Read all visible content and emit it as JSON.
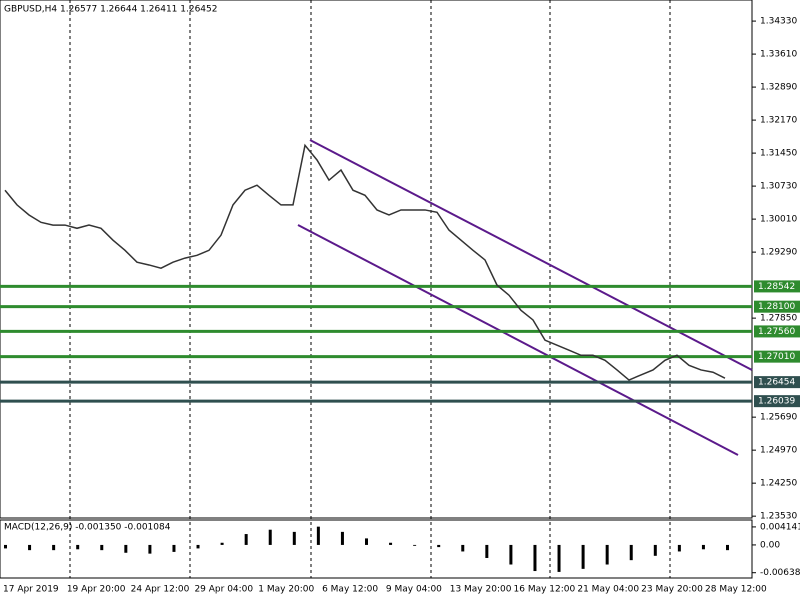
{
  "chart_data": {
    "type": "line",
    "title": "GBPUSD,H4  1.26577 1.26644 1.26411 1.26452",
    "x_labels": [
      "17 Apr 2019",
      "19 Apr 20:00",
      "24 Apr 12:00",
      "29 Apr 04:00",
      "1 May 20:00",
      "6 May 12:00",
      "9 May 04:00",
      "13 May 20:00",
      "16 May 12:00",
      "21 May 04:00",
      "23 May 20:00",
      "28 May 12:00"
    ],
    "series": [
      {
        "color": "#333333",
        "values": [
          1.3064,
          1.3032,
          1.301,
          1.2994,
          1.2988,
          1.2988,
          1.2981,
          1.2988,
          1.2981,
          1.2955,
          1.2933,
          1.2907,
          1.2901,
          1.2894,
          1.2907,
          1.2916,
          1.2922,
          1.2933,
          1.2966,
          1.3032,
          1.3064,
          1.3075,
          1.3053,
          1.3032,
          1.3032,
          1.3162,
          1.313,
          1.3086,
          1.3108,
          1.3064,
          1.3053,
          1.3021,
          1.301,
          1.3021,
          1.3021,
          1.3021,
          1.3016,
          1.2977,
          1.2955,
          1.2933,
          1.2912,
          1.2857,
          1.2835,
          1.2802,
          1.2781,
          1.2737,
          1.2726,
          1.2715,
          1.2704,
          1.2704,
          1.2693,
          1.2672,
          1.265,
          1.2661,
          1.2672,
          1.2693,
          1.2704,
          1.2682,
          1.2672,
          1.2667,
          1.2654
        ]
      }
    ],
    "ylim": [
      1.2349,
      1.3479
    ],
    "yticks": [
      {
        "value": 1.3433,
        "label": "1.34330"
      },
      {
        "value": 1.3361,
        "label": "1.33610"
      },
      {
        "value": 1.3289,
        "label": "1.32890"
      },
      {
        "value": 1.3217,
        "label": "1.32170"
      },
      {
        "value": 1.3145,
        "label": "1.31450"
      },
      {
        "value": 1.3073,
        "label": "1.30730"
      },
      {
        "value": 1.3001,
        "label": "1.30010"
      },
      {
        "value": 1.2929,
        "label": "1.29290"
      },
      {
        "value": 1.2785,
        "label": "1.27850"
      },
      {
        "value": 1.2569,
        "label": "1.25690"
      },
      {
        "value": 1.2497,
        "label": "1.24970"
      },
      {
        "value": 1.2425,
        "label": "1.24250"
      },
      {
        "value": 1.2353,
        "label": "1.23530"
      }
    ],
    "levels": [
      {
        "value": 1.28542,
        "color": "#2e8b2e"
      },
      {
        "value": {
          "value": 1.281,
          "label": "1.28100"
        },
        "color": "#2e8b2e"
      },
      {
        "value": {
          "value": 1.2756,
          "label": "1.27560"
        },
        "color": "#2e8b2e"
      },
      {
        "value": {
          "value": 1.2701,
          "label": "1.27010"
        },
        "color": "#2e8b2e"
      },
      {
        "value": 1.26454,
        "color": "#2f4f4f"
      },
      {
        "value": 1.26039,
        "color": "#2f4f4f"
      }
    ],
    "macd": {
      "title": "MACD(12,26,9) -0.001350 -0.001084",
      "color": "#000000",
      "values": [
        -0.0008,
        -0.0012,
        -0.0012,
        -0.001,
        -0.0012,
        -0.0018,
        -0.002,
        -0.0016,
        -0.0008,
        0.0005,
        0.0025,
        0.0035,
        0.003,
        0.0042,
        0.003,
        0.0015,
        0.0005,
        -0.0002,
        -0.0005,
        -0.0015,
        -0.003,
        -0.0045,
        -0.006,
        -0.0062,
        -0.0055,
        -0.0045,
        -0.0035,
        -0.0025,
        -0.0015,
        -0.001,
        -0.0012
      ],
      "ylim": [
        -0.0076,
        0.0055
      ],
      "yticks": [
        0.004141,
        {
          "value": 0,
          "label": "0.00"
        },
        -0.006384
      ]
    }
  }
}
